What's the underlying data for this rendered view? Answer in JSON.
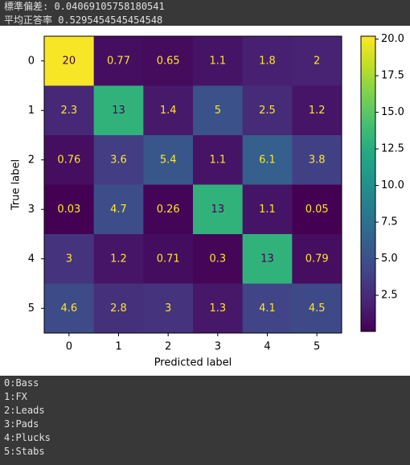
{
  "header": [
    "標準偏差:  0.04069105758180541",
    "平均正答率 0.5295454545454548"
  ],
  "chart_data": {
    "type": "heatmap",
    "x_categories": [
      "0",
      "1",
      "2",
      "3",
      "4",
      "5"
    ],
    "y_categories": [
      "0",
      "1",
      "2",
      "3",
      "4",
      "5"
    ],
    "xlabel": "Predicted label",
    "ylabel": "True label",
    "values": [
      [
        20,
        0.77,
        0.65,
        1.1,
        1.8,
        2
      ],
      [
        2.3,
        13,
        1.4,
        5,
        2.5,
        1.2
      ],
      [
        0.76,
        3.6,
        5.4,
        1.1,
        6.1,
        3.8
      ],
      [
        0.03,
        4.7,
        0.26,
        13,
        1.1,
        0.05
      ],
      [
        3,
        1.2,
        0.71,
        0.3,
        13,
        0.79
      ],
      [
        4.6,
        2.8,
        3,
        1.3,
        4.1,
        4.5
      ]
    ],
    "colormap": "viridis",
    "clim": [
      0.03,
      20.2
    ],
    "cticks": [
      2.5,
      {
        "value": 5,
        "label": "5.0"
      },
      7.5,
      {
        "value": 10,
        "label": "10.0"
      },
      12.5,
      {
        "value": 15,
        "label": "15.0"
      },
      17.5,
      {
        "value": 20,
        "label": "20.0"
      }
    ]
  },
  "footer": [
    "0:Bass",
    "1:FX",
    "2:Leads",
    "3:Pads",
    "4:Plucks",
    "5:Stabs"
  ]
}
